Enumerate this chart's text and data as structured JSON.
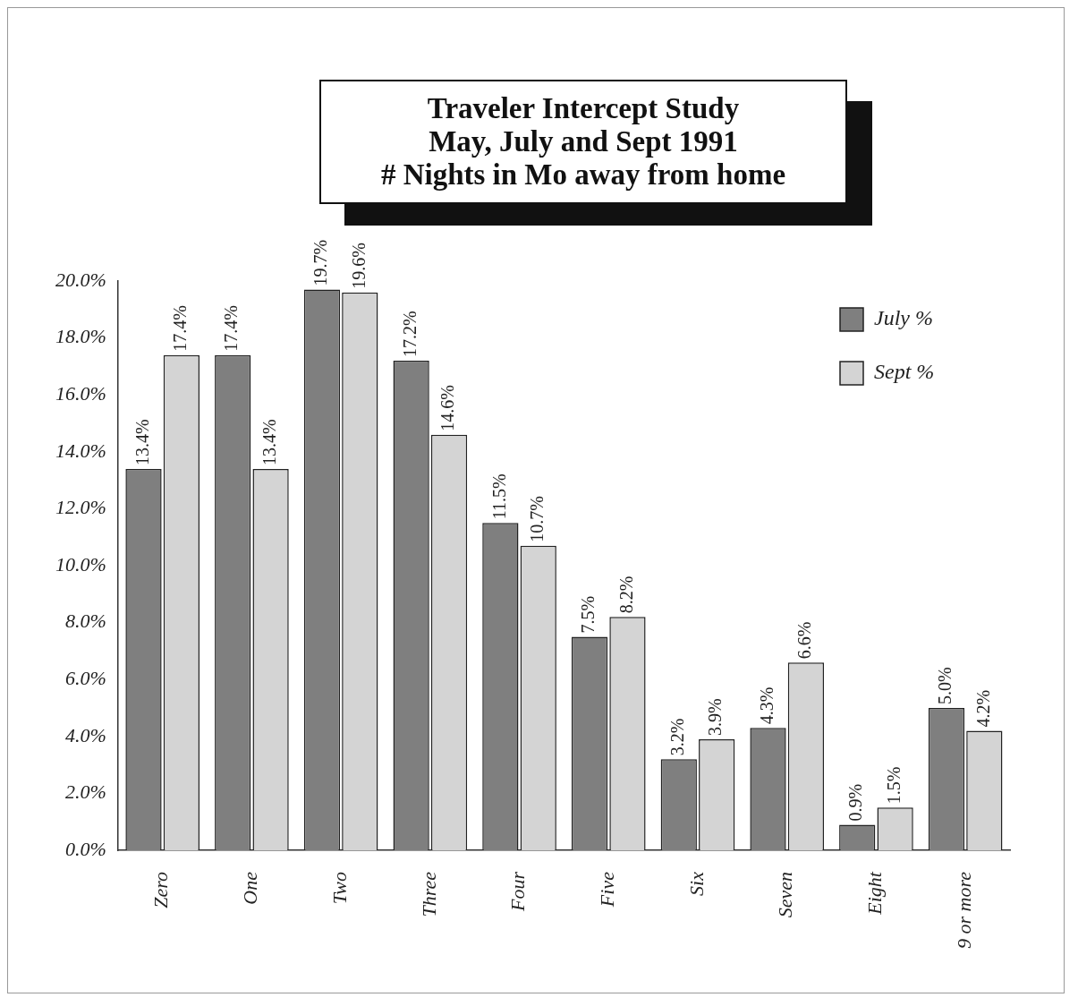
{
  "chart_data": {
    "type": "bar",
    "title": "Traveler Intercept Study\nMay, July and Sept 1991\n# Nights in Mo away from home",
    "categories": [
      "Zero",
      "One",
      "Two",
      "Three",
      "Four",
      "Five",
      "Six",
      "Seven",
      "Eight",
      "9 or more"
    ],
    "series": [
      {
        "name": "July %",
        "color": "#7f7f7f",
        "values": [
          13.4,
          17.4,
          19.7,
          17.2,
          11.5,
          7.5,
          3.2,
          4.3,
          0.9,
          5.0
        ],
        "value_labels": [
          "13.4%",
          "17.4%",
          "19.7%",
          "17.2%",
          "11.5%",
          "7.5%",
          "3.2%",
          "4.3%",
          "0.9%",
          "5.0%"
        ]
      },
      {
        "name": "Sept %",
        "color": "#d4d4d4",
        "values": [
          17.4,
          13.4,
          19.6,
          14.6,
          10.7,
          8.2,
          3.9,
          6.6,
          1.5,
          4.2
        ],
        "value_labels": [
          "17.4%",
          "13.4%",
          "19.6%",
          "14.6%",
          "10.7%",
          "8.2%",
          "3.9%",
          "6.6%",
          "1.5%",
          "4.2%"
        ]
      }
    ],
    "ylim": [
      0,
      20
    ],
    "yticks": [
      {
        "value": 0,
        "label": "0.0%"
      },
      {
        "value": 2,
        "label": "2.0%"
      },
      {
        "value": 4,
        "label": "4.0%"
      },
      {
        "value": 6,
        "label": "6.0%"
      },
      {
        "value": 8,
        "label": "8.0%"
      },
      {
        "value": 10,
        "label": "10.0%"
      },
      {
        "value": 12,
        "label": "12.0%"
      },
      {
        "value": 14,
        "label": "14.0%"
      },
      {
        "value": 16,
        "label": "16.0%"
      },
      {
        "value": 18,
        "label": "18.0%"
      },
      {
        "value": 20,
        "label": "20.0%"
      }
    ],
    "legend": "top right",
    "grid": false
  }
}
